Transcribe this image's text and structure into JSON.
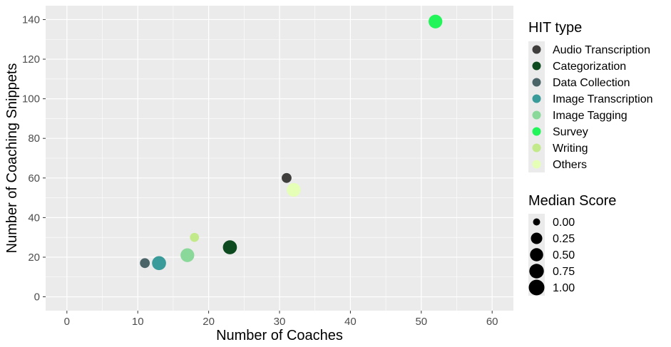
{
  "chart_data": {
    "type": "scatter",
    "xlabel": "Number of Coaches",
    "ylabel": "Number of Coaching Snippets",
    "xlim": [
      -3,
      63
    ],
    "ylim": [
      -7,
      147
    ],
    "x_ticks": [
      0,
      10,
      20,
      30,
      40,
      50,
      60
    ],
    "y_ticks": [
      0,
      20,
      40,
      60,
      80,
      100,
      120,
      140
    ],
    "grid": true,
    "legend_placement": "right",
    "points": [
      {
        "category": "Survey",
        "x": 52,
        "y": 139,
        "median_score": 0.6
      },
      {
        "category": "Audio Transcription",
        "x": 31,
        "y": 60,
        "median_score": 0.1
      },
      {
        "category": "Others",
        "x": 32,
        "y": 54,
        "median_score": 0.6
      },
      {
        "category": "Writing",
        "x": 18,
        "y": 30,
        "median_score": 0.05
      },
      {
        "category": "Categorization",
        "x": 23,
        "y": 25,
        "median_score": 0.65
      },
      {
        "category": "Image Tagging",
        "x": 17,
        "y": 21,
        "median_score": 0.6
      },
      {
        "category": "Data Collection",
        "x": 11,
        "y": 17,
        "median_score": 0.1
      },
      {
        "category": "Image Transcription",
        "x": 13,
        "y": 17,
        "median_score": 0.65
      }
    ],
    "color_legend": {
      "title": "HIT type",
      "entries": [
        {
          "label": "Audio Transcription",
          "color": "#403d3d"
        },
        {
          "label": "Categorization",
          "color": "#0d4a1f"
        },
        {
          "label": "Data Collection",
          "color": "#4b6468"
        },
        {
          "label": "Image Transcription",
          "color": "#3a9c9a"
        },
        {
          "label": "Image Tagging",
          "color": "#8ad99a"
        },
        {
          "label": "Survey",
          "color": "#22f55a"
        },
        {
          "label": "Writing",
          "color": "#c3ea8a"
        },
        {
          "label": "Others",
          "color": "#e6ffb6"
        }
      ]
    },
    "size_legend": {
      "title": "Median Score",
      "entries": [
        {
          "label": "0.00",
          "value": 0.0
        },
        {
          "label": "0.25",
          "value": 0.25
        },
        {
          "label": "0.50",
          "value": 0.5
        },
        {
          "label": "0.75",
          "value": 0.75
        },
        {
          "label": "1.00",
          "value": 1.0
        }
      ]
    },
    "colors": {
      "panel_background": "#ebebeb",
      "grid": "#ffffff",
      "tick_text": "#4d4d4d",
      "size_key": "#000000"
    }
  }
}
